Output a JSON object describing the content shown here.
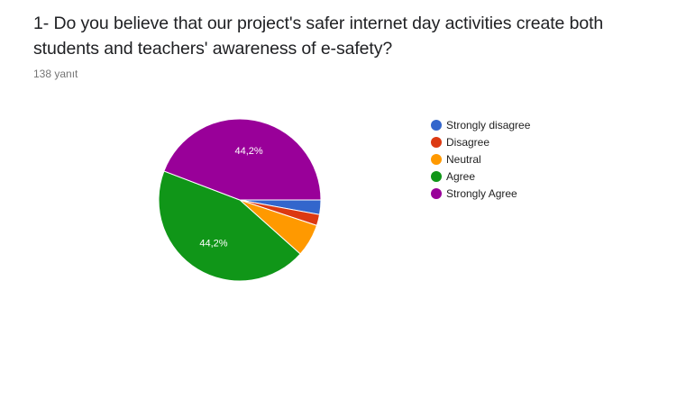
{
  "question": {
    "title": "1- Do you believe that our project's safer internet day activities create both students and teachers' awareness of e-safety?",
    "response_count": "138 yanıt"
  },
  "chart_data": {
    "type": "pie",
    "title": "1- Do you believe that our project's safer internet day activities create both students and teachers' awareness of e-safety?",
    "total_responses": 138,
    "categories": [
      "Strongly disagree",
      "Disagree",
      "Neutral",
      "Agree",
      "Strongly Agree"
    ],
    "values": [
      2.9,
      2.2,
      6.5,
      44.2,
      44.2
    ],
    "colors": [
      "#3366cc",
      "#dc3912",
      "#ff9900",
      "#109618",
      "#990099"
    ],
    "data_labels": [
      "",
      "",
      "",
      "44,2%",
      "44,2%"
    ],
    "legend_position": "right",
    "start_angle": "3 o'clock, clockwise"
  }
}
